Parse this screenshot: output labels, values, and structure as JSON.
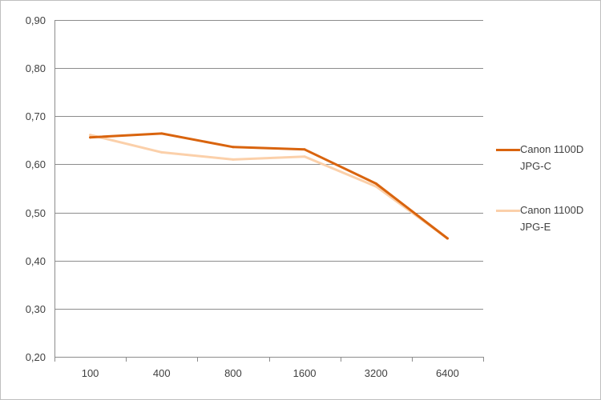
{
  "chart_data": {
    "type": "line",
    "categories": [
      "100",
      "400",
      "800",
      "1600",
      "3200",
      "6400"
    ],
    "series": [
      {
        "name": "Canon 1100D JPG-C",
        "values": [
          0.656,
          0.664,
          0.636,
          0.631,
          0.56,
          0.446
        ],
        "color": "#d9640e"
      },
      {
        "name": "Canon 1100D JPG-E",
        "values": [
          0.661,
          0.625,
          0.61,
          0.616,
          0.554,
          0.446
        ],
        "color": "#fbd0aa"
      }
    ],
    "yticks": [
      "0,20",
      "0,30",
      "0,40",
      "0,50",
      "0,60",
      "0,70",
      "0,80",
      "0,90"
    ],
    "ylim": [
      0.2,
      0.9
    ],
    "grid": true,
    "legend": "right",
    "title": "",
    "xlabel": "",
    "ylabel": ""
  }
}
